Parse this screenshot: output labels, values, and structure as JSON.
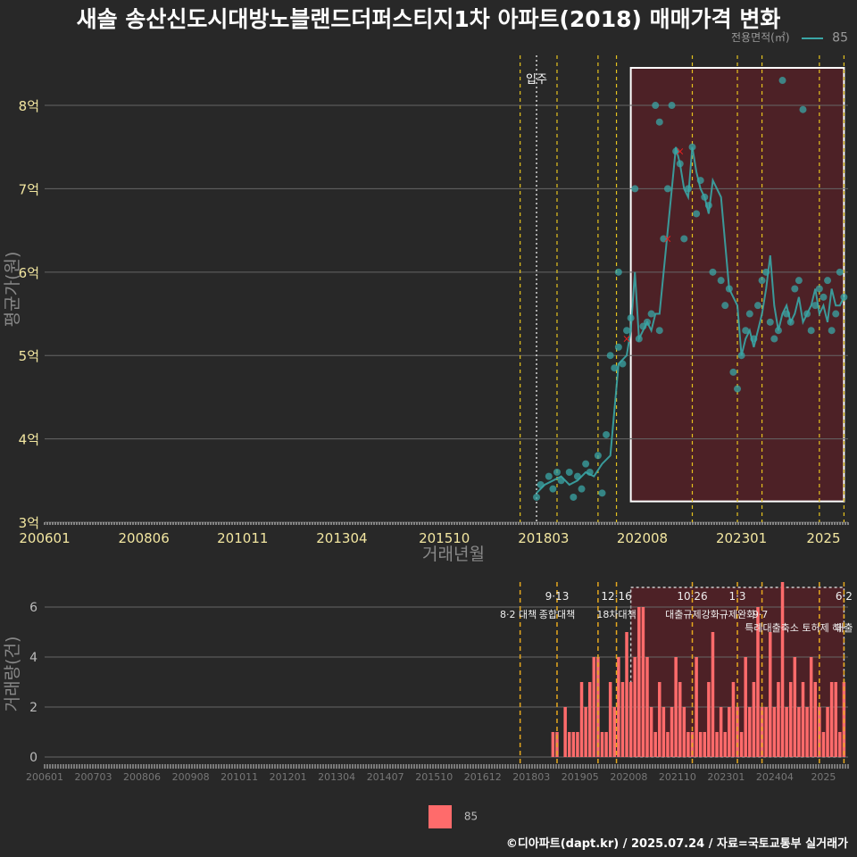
{
  "title": "새솔 송산신도시대방노블랜드더퍼스티지1차 아파트(2018) 매매가격 변화",
  "legend_top": {
    "title": "전용면적(㎡)",
    "label": "85"
  },
  "legend_bottom": {
    "label": "85"
  },
  "credit": "©디아파트(dapt.kr) / 2025.07.24 / 자료=국토교통부 실거래가",
  "colors": {
    "background": "#282828",
    "line": "#3aa6a6",
    "bar": "#ff6b6b",
    "box": "#5a1f25",
    "policy": "#e6c31e",
    "grid": "#666666"
  },
  "chart_data": [
    {
      "type": "line",
      "title": "매매가격",
      "xlabel": "거래년월",
      "ylabel": "평균가(원)",
      "x_ticks": [
        "200601",
        "200806",
        "201011",
        "201304",
        "201510",
        "201803",
        "202008",
        "202301",
        "2025"
      ],
      "y_ticks": [
        {
          "v": 3,
          "label": "3억"
        },
        {
          "v": 4,
          "label": "4억"
        },
        {
          "v": 5,
          "label": "5억"
        },
        {
          "v": 6,
          "label": "6억"
        },
        {
          "v": 7,
          "label": "7억"
        },
        {
          "v": 8,
          "label": "8억"
        }
      ],
      "ylim": [
        3,
        8.6
      ],
      "xlim": [
        2006.0,
        2025.6
      ],
      "series": [
        {
          "name": "85",
          "line_x": [
            2018.0,
            2018.2,
            2018.4,
            2018.6,
            2018.8,
            2019.0,
            2019.2,
            2019.4,
            2019.6,
            2019.8,
            2020.0,
            2020.2,
            2020.3,
            2020.4,
            2020.5,
            2020.6,
            2020.7,
            2020.8,
            2020.9,
            2021.0,
            2021.1,
            2021.2,
            2021.3,
            2021.4,
            2021.5,
            2021.6,
            2021.7,
            2021.8,
            2021.9,
            2022.0,
            2022.1,
            2022.2,
            2022.3,
            2022.5,
            2022.7,
            2022.9,
            2023.0,
            2023.1,
            2023.2,
            2023.3,
            2023.4,
            2023.5,
            2023.6,
            2023.7,
            2023.8,
            2023.9,
            2024.0,
            2024.1,
            2024.2,
            2024.3,
            2024.4,
            2024.5,
            2024.6,
            2024.7,
            2024.8,
            2024.9,
            2025.0,
            2025.1,
            2025.2,
            2025.3,
            2025.4,
            2025.5
          ],
          "line_y": [
            3.35,
            3.45,
            3.5,
            3.55,
            3.45,
            3.5,
            3.6,
            3.55,
            3.7,
            3.8,
            4.9,
            5.0,
            5.3,
            6.0,
            5.2,
            5.3,
            5.4,
            5.3,
            5.5,
            5.5,
            6.0,
            6.5,
            7.0,
            7.5,
            7.3,
            7.0,
            6.9,
            7.5,
            7.2,
            7.0,
            6.9,
            6.7,
            7.1,
            6.9,
            5.8,
            5.6,
            5.0,
            5.2,
            5.3,
            5.1,
            5.3,
            5.5,
            5.8,
            6.2,
            5.6,
            5.3,
            5.5,
            5.6,
            5.4,
            5.5,
            5.7,
            5.4,
            5.5,
            5.6,
            5.8,
            5.5,
            5.6,
            5.4,
            5.8,
            5.6,
            5.6,
            5.7
          ],
          "points_x": [
            2018.0,
            2018.1,
            2018.3,
            2018.4,
            2018.5,
            2018.6,
            2018.8,
            2018.9,
            2019.0,
            2019.1,
            2019.2,
            2019.3,
            2019.5,
            2019.6,
            2019.7,
            2019.8,
            2019.9,
            2020.0,
            2020.0,
            2020.1,
            2020.2,
            2020.3,
            2020.4,
            2020.5,
            2020.6,
            2020.7,
            2020.8,
            2020.9,
            2021.0,
            2021.0,
            2021.1,
            2021.2,
            2021.3,
            2021.4,
            2021.5,
            2021.6,
            2021.7,
            2021.8,
            2021.9,
            2022.0,
            2022.1,
            2022.2,
            2022.3,
            2022.5,
            2022.6,
            2022.7,
            2022.8,
            2022.9,
            2023.0,
            2023.1,
            2023.2,
            2023.3,
            2023.4,
            2023.5,
            2023.6,
            2023.7,
            2023.8,
            2023.9,
            2024.0,
            2024.1,
            2024.2,
            2024.3,
            2024.4,
            2024.5,
            2024.6,
            2024.7,
            2024.8,
            2024.9,
            2025.0,
            2025.1,
            2025.2,
            2025.3,
            2025.4,
            2025.5
          ],
          "points_y": [
            3.3,
            3.45,
            3.55,
            3.4,
            3.6,
            3.5,
            3.6,
            3.3,
            3.55,
            3.4,
            3.7,
            3.6,
            3.8,
            3.35,
            4.05,
            5.0,
            4.85,
            5.1,
            6.0,
            4.9,
            5.3,
            5.45,
            7.0,
            5.2,
            5.35,
            5.4,
            5.5,
            8.0,
            7.8,
            5.3,
            6.4,
            7.0,
            8.0,
            7.45,
            7.3,
            6.4,
            7.0,
            7.5,
            6.7,
            7.1,
            6.9,
            6.8,
            6.0,
            5.9,
            5.6,
            5.8,
            4.8,
            4.6,
            5.0,
            5.3,
            5.5,
            5.2,
            5.6,
            5.9,
            6.0,
            5.4,
            5.2,
            5.3,
            8.3,
            5.5,
            5.4,
            5.8,
            5.9,
            7.95,
            5.5,
            5.3,
            5.6,
            5.8,
            5.7,
            5.9,
            5.3,
            5.5,
            6.0,
            5.7
          ]
        }
      ],
      "red_marks_x": [
        2020.2,
        2021.2,
        2021.5
      ],
      "red_marks_y": [
        5.2,
        6.4,
        7.45
      ],
      "highlight_x": [
        2020.3,
        2025.5
      ],
      "highlight_y": [
        3.25,
        8.45
      ],
      "policy_x": [
        2017.6,
        2018.5,
        2019.5,
        2019.95,
        2021.8,
        2022.9,
        2023.5,
        2024.9,
        2025.5
      ],
      "annotation": {
        "x": 2018.0,
        "label": "입주"
      }
    },
    {
      "type": "bar",
      "title": "거래량",
      "ylabel": "거래량(건)",
      "x_ticks": [
        "200601",
        "200703",
        "200806",
        "200908",
        "201011",
        "201201",
        "201304",
        "201407",
        "201510",
        "201612",
        "201803",
        "201905",
        "202008",
        "202110",
        "202301",
        "202404",
        "2025"
      ],
      "y_ticks": [
        0,
        2,
        4,
        6
      ],
      "ylim": [
        0,
        7
      ],
      "xlim": [
        2006.0,
        2025.6
      ],
      "series": [
        {
          "name": "85",
          "x": [
            2018.4,
            2018.5,
            2018.7,
            2018.8,
            2018.9,
            2019.0,
            2019.1,
            2019.2,
            2019.3,
            2019.4,
            2019.5,
            2019.6,
            2019.7,
            2019.8,
            2019.9,
            2020.0,
            2020.1,
            2020.2,
            2020.3,
            2020.4,
            2020.5,
            2020.6,
            2020.7,
            2020.8,
            2020.9,
            2021.0,
            2021.1,
            2021.2,
            2021.3,
            2021.4,
            2021.5,
            2021.6,
            2021.7,
            2021.8,
            2021.9,
            2022.0,
            2022.1,
            2022.2,
            2022.3,
            2022.4,
            2022.5,
            2022.6,
            2022.7,
            2022.8,
            2022.9,
            2023.0,
            2023.1,
            2023.2,
            2023.3,
            2023.4,
            2023.5,
            2023.6,
            2023.7,
            2023.8,
            2023.9,
            2024.0,
            2024.1,
            2024.2,
            2024.3,
            2024.4,
            2024.5,
            2024.6,
            2024.7,
            2024.8,
            2024.9,
            2025.0,
            2025.1,
            2025.2,
            2025.3,
            2025.4,
            2025.5
          ],
          "values": [
            1,
            1,
            2,
            1,
            1,
            1,
            3,
            2,
            3,
            4,
            4,
            1,
            1,
            3,
            2,
            4,
            3,
            5,
            3,
            4,
            6,
            6,
            4,
            2,
            1,
            3,
            2,
            1,
            2,
            4,
            3,
            2,
            1,
            1,
            4,
            1,
            1,
            3,
            5,
            1,
            2,
            1,
            2,
            3,
            2,
            1,
            4,
            2,
            3,
            6,
            2,
            2,
            5,
            2,
            3,
            7,
            2,
            3,
            4,
            2,
            3,
            2,
            4,
            3,
            2,
            1,
            2,
            3,
            3,
            1,
            3
          ]
        }
      ],
      "highlight_x": [
        2020.3,
        2025.5
      ],
      "policy_x": [
        2017.6,
        2018.5,
        2019.5,
        2019.95,
        2021.8,
        2022.9,
        2023.5,
        2024.9,
        2025.5
      ],
      "policy_labels": [
        {
          "x": 2017.6,
          "l1": "",
          "l2": "8·2 대책"
        },
        {
          "x": 2018.5,
          "l1": "9·13",
          "l2": "종합대책"
        },
        {
          "x": 2019.95,
          "l1": "12·16",
          "l2": "18차대책"
        },
        {
          "x": 2021.8,
          "l1": "10·26",
          "l2": "대출규제강화"
        },
        {
          "x": 2022.9,
          "l1": "1·3",
          "l2": "규제완화"
        },
        {
          "x": 2023.5,
          "l1": "",
          "l2": "9·7"
        },
        {
          "x": 2024.3,
          "l1": "",
          "l2": "특례대출축소 토허제 해"
        },
        {
          "x": 2025.5,
          "l1": "6·2",
          "l2": "대출"
        }
      ]
    }
  ]
}
